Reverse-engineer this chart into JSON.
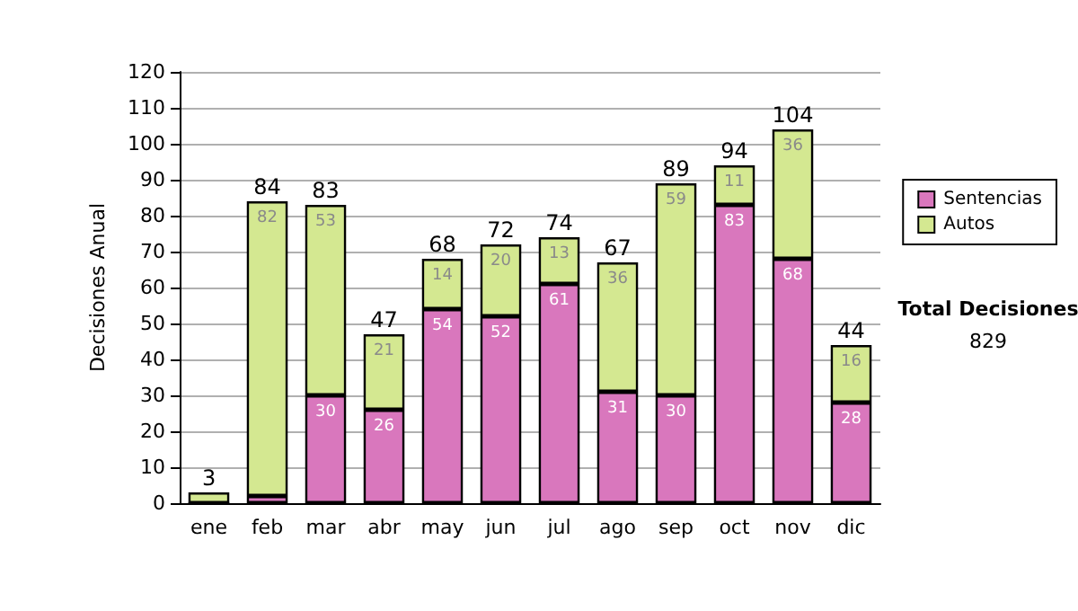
{
  "chart_data": {
    "type": "bar",
    "ylabel": "Decisiones Anual",
    "categories": [
      "ene",
      "feb",
      "mar",
      "abr",
      "may",
      "jun",
      "jul",
      "ago",
      "sep",
      "oct",
      "nov",
      "dic"
    ],
    "stacked": true,
    "series": [
      {
        "name": "Sentencias",
        "color": "#d977bd",
        "values": [
          0,
          2,
          30,
          26,
          54,
          52,
          61,
          31,
          30,
          83,
          68,
          28
        ],
        "value_labels": [
          null,
          null,
          "30",
          "26",
          "54",
          "52",
          "61",
          "31",
          "30",
          "83",
          "68",
          "28"
        ]
      },
      {
        "name": "Autos",
        "color": "#d4e891",
        "values": [
          3,
          82,
          53,
          21,
          14,
          20,
          13,
          36,
          59,
          11,
          36,
          16
        ],
        "value_labels": [
          null,
          "82",
          "53",
          "21",
          "14",
          "20",
          "13",
          "36",
          "59",
          "11",
          "36",
          "16"
        ]
      }
    ],
    "totals": [
      "3",
      "84",
      "83",
      "47",
      "68",
      "72",
      "74",
      "67",
      "89",
      "94",
      "104",
      "44"
    ],
    "ylim": [
      0,
      120
    ],
    "yticks": [
      0,
      10,
      20,
      30,
      40,
      50,
      60,
      70,
      80,
      90,
      100,
      110,
      120
    ],
    "grid": "y",
    "legend": "right",
    "annotations": [
      "Total Decisiones",
      "829"
    ]
  }
}
